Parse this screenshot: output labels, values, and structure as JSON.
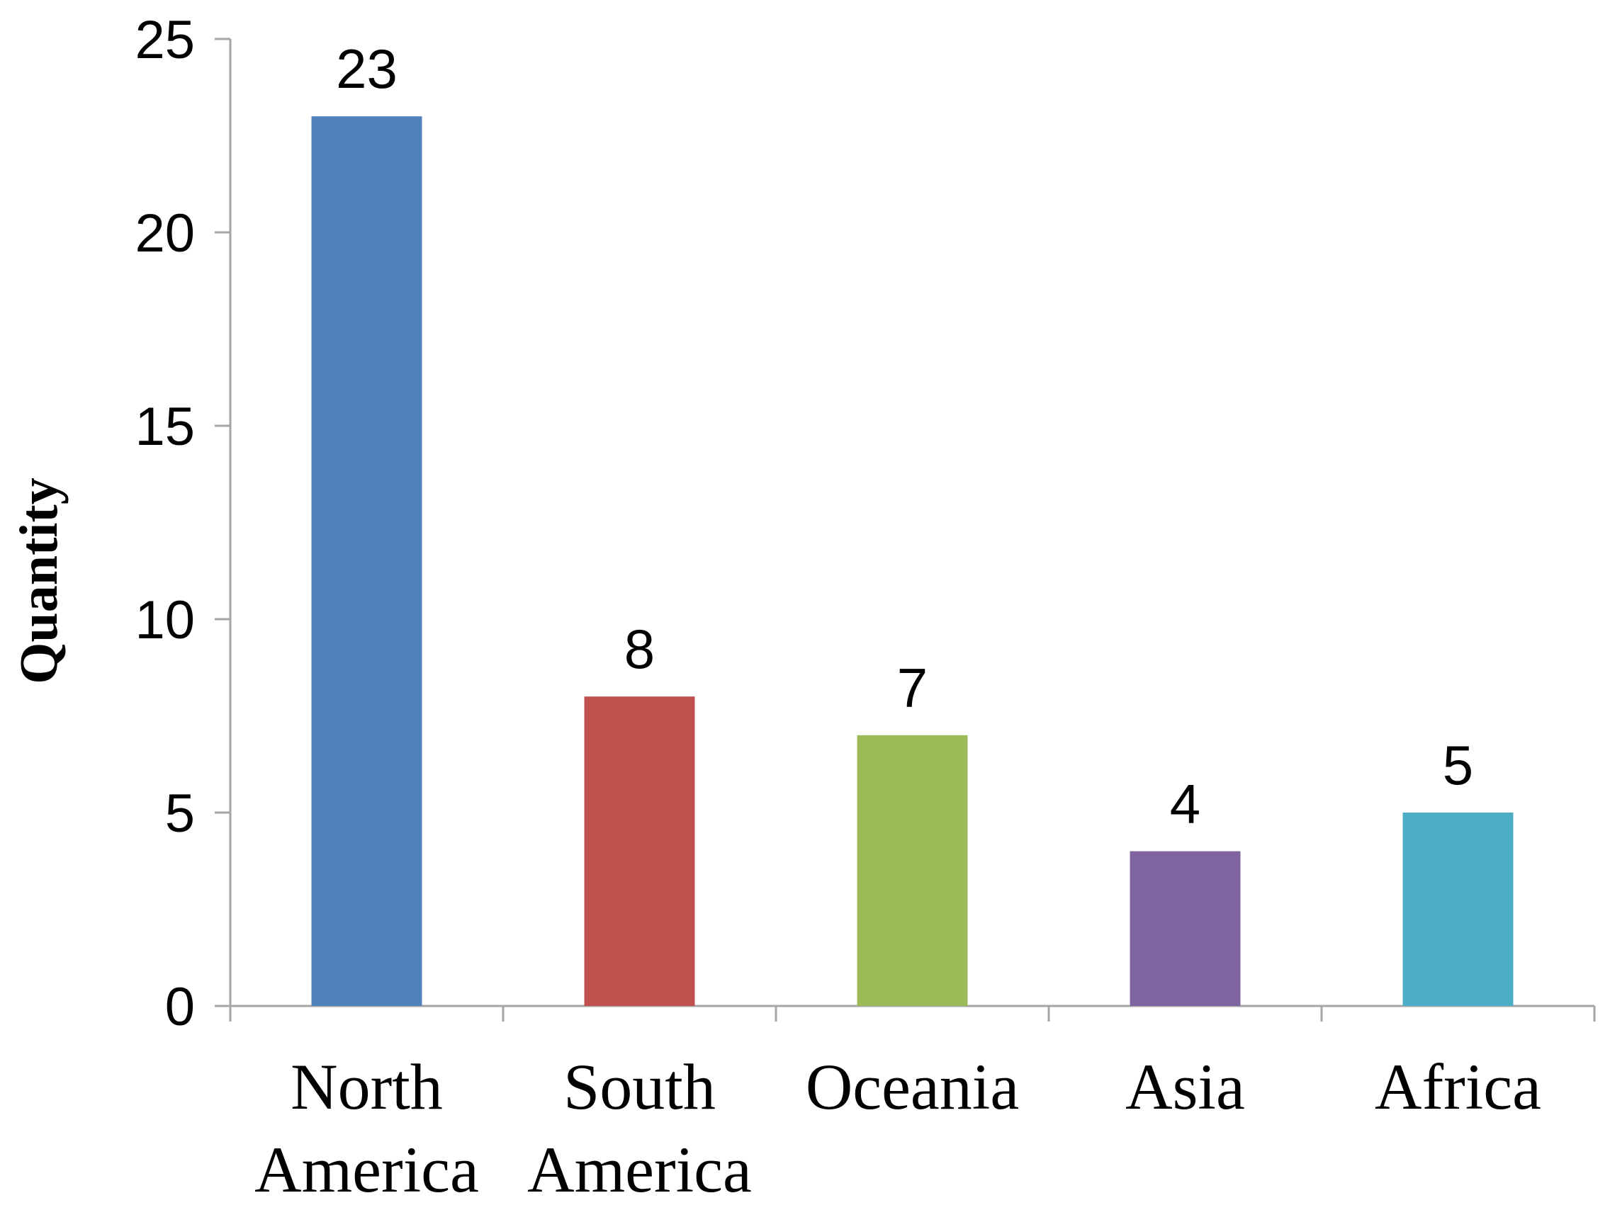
{
  "chart_data": {
    "type": "bar",
    "title": "",
    "xlabel": "",
    "ylabel": "Quantity",
    "categories": [
      [
        "North",
        "America"
      ],
      [
        "South",
        "America"
      ],
      [
        "Oceania"
      ],
      [
        "Asia"
      ],
      [
        "Africa"
      ]
    ],
    "values": [
      23,
      8,
      7,
      4,
      5
    ],
    "data_labels": [
      "23",
      "8",
      "7",
      "4",
      "5"
    ],
    "colors": [
      "#4f81bd",
      "#c0504d",
      "#9bbb59",
      "#8064a2",
      "#4bacc6"
    ],
    "ylim": [
      0,
      25
    ],
    "yticks": [
      0,
      5,
      10,
      15,
      20,
      25
    ],
    "ytick_labels": [
      "0",
      "5",
      "10",
      "15",
      "20",
      "25"
    ],
    "grid": false,
    "legend": "none"
  }
}
